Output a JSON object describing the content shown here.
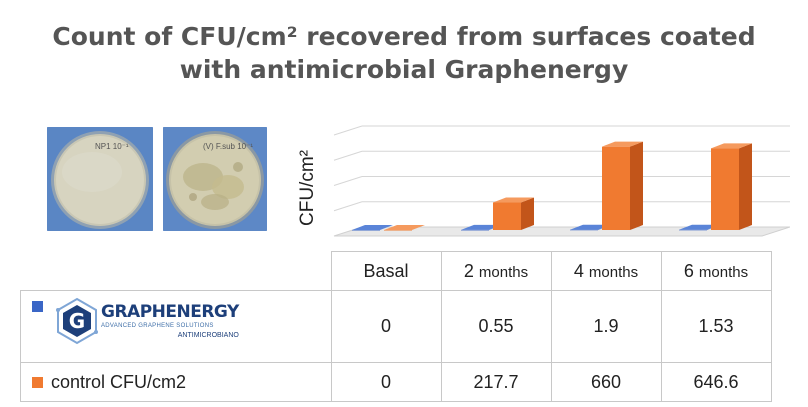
{
  "title_line1": "Count of CFU/cm² recovered from surfaces coated",
  "title_line2": "with antimicrobial Graphenergy",
  "colors": {
    "graphenergy": "#3a66c6",
    "control": "#f07a30",
    "control_dark": "#c2551a",
    "title": "#555555"
  },
  "chart_data": {
    "type": "bar",
    "ylabel": "CFU/cm²",
    "categories": [
      {
        "main": "Basal",
        "sub": ""
      },
      {
        "main": "2",
        "sub": "months"
      },
      {
        "main": "4",
        "sub": "months"
      },
      {
        "main": "6",
        "sub": "months"
      }
    ],
    "series": [
      {
        "name": "",
        "logo_name": "GRAPHENERGY",
        "logo_tagline": "ADVANCED GRAPHENE SOLUTIONS",
        "logo_sub": "ANTIMICROBIANO",
        "values": [
          0,
          0.55,
          1.9,
          1.53
        ],
        "labels": [
          "0",
          "0.55",
          "1.9",
          "1.53"
        ]
      },
      {
        "name": "control CFU/cm2",
        "values": [
          0,
          217.7,
          660,
          646.6
        ],
        "labels": [
          "0",
          "217.7",
          "660",
          "646.6"
        ]
      }
    ],
    "ylim": [
      0,
      800
    ],
    "grid": true,
    "style": "3d"
  },
  "photos": [
    {
      "name": "petri-dish-graphenergy",
      "handwriting": "NP1 10⁻¹"
    },
    {
      "name": "petri-dish-control",
      "handwriting": "(V) F.sub 10⁻¹"
    }
  ]
}
